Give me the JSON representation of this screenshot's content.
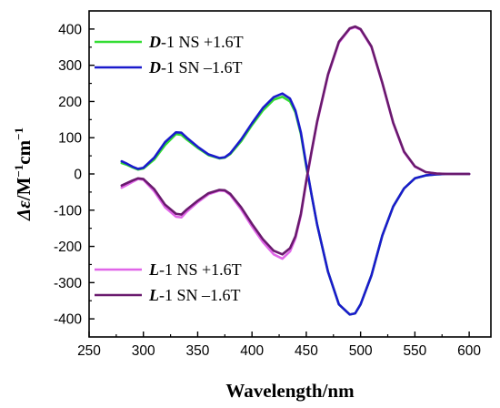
{
  "chart_data": {
    "type": "line",
    "xlabel": "Wavelength/nm",
    "ylabel_parts": {
      "symbol": "Δε",
      "sep": "/M",
      "exp1": "−1",
      "mid": "cm",
      "exp2": "−1"
    },
    "xlim": [
      250,
      620
    ],
    "ylim": [
      -450,
      450
    ],
    "xticks": [
      250,
      300,
      350,
      400,
      450,
      500,
      550,
      600
    ],
    "yticks": [
      -400,
      -300,
      -200,
      -100,
      0,
      100,
      200,
      300,
      400
    ],
    "grid": false,
    "legend_placement": [
      "top-left",
      "bottom-left"
    ],
    "series": [
      {
        "name_prefix": "D",
        "name_suffix": "-1 NS +1.6T",
        "color": "#33dd33",
        "x": [
          280,
          285,
          290,
          295,
          300,
          310,
          320,
          330,
          335,
          340,
          350,
          360,
          370,
          375,
          380,
          390,
          400,
          410,
          420,
          428,
          435,
          440,
          445,
          450,
          455,
          460,
          470,
          480,
          490,
          495,
          500,
          510,
          520,
          530,
          540,
          550,
          560,
          570,
          580,
          590,
          600
        ],
        "y": [
          30,
          25,
          18,
          12,
          15,
          40,
          80,
          110,
          108,
          95,
          72,
          52,
          43,
          45,
          55,
          90,
          135,
          175,
          205,
          213,
          200,
          170,
          110,
          20,
          -60,
          -140,
          -270,
          -360,
          -388,
          -385,
          -360,
          -280,
          -170,
          -90,
          -40,
          -12,
          -4,
          -1,
          0,
          0,
          0
        ]
      },
      {
        "name_prefix": "D",
        "name_suffix": "-1 SN –1.6T",
        "color": "#1a1acc",
        "x": [
          280,
          285,
          290,
          295,
          300,
          310,
          320,
          330,
          335,
          340,
          350,
          360,
          370,
          375,
          380,
          390,
          400,
          410,
          420,
          428,
          435,
          440,
          445,
          450,
          455,
          460,
          470,
          480,
          490,
          495,
          500,
          510,
          520,
          530,
          540,
          550,
          560,
          570,
          580,
          590,
          600
        ],
        "y": [
          35,
          28,
          20,
          14,
          17,
          45,
          88,
          115,
          114,
          100,
          75,
          54,
          44,
          46,
          57,
          95,
          140,
          182,
          212,
          222,
          208,
          175,
          115,
          25,
          -60,
          -140,
          -270,
          -360,
          -388,
          -385,
          -360,
          -280,
          -170,
          -90,
          -40,
          -12,
          -4,
          -1,
          0,
          0,
          0
        ]
      },
      {
        "name_prefix": "L",
        "name_suffix": "-1 NS +1.6T",
        "color": "#e066e8",
        "x": [
          280,
          285,
          290,
          295,
          300,
          310,
          320,
          330,
          335,
          340,
          350,
          360,
          370,
          375,
          380,
          390,
          400,
          410,
          420,
          428,
          435,
          440,
          445,
          450,
          455,
          460,
          470,
          480,
          490,
          495,
          500,
          510,
          520,
          530,
          540,
          550,
          560,
          570,
          580,
          590,
          600
        ],
        "y": [
          -38,
          -30,
          -22,
          -14,
          -16,
          -48,
          -92,
          -118,
          -120,
          -104,
          -78,
          -56,
          -46,
          -47,
          -58,
          -98,
          -145,
          -188,
          -222,
          -234,
          -214,
          -178,
          -115,
          -22,
          62,
          142,
          272,
          362,
          400,
          405,
          398,
          350,
          250,
          140,
          60,
          20,
          5,
          1,
          0,
          0,
          0
        ]
      },
      {
        "name_prefix": "L",
        "name_suffix": "-1 SN –1.6T",
        "color": "#6a1a6e",
        "x": [
          280,
          285,
          290,
          295,
          300,
          310,
          320,
          330,
          335,
          340,
          350,
          360,
          370,
          375,
          380,
          390,
          400,
          410,
          420,
          428,
          435,
          440,
          445,
          450,
          455,
          460,
          470,
          480,
          490,
          495,
          500,
          510,
          520,
          530,
          540,
          550,
          560,
          570,
          580,
          590,
          600
        ],
        "y": [
          -32,
          -25,
          -18,
          -12,
          -14,
          -42,
          -85,
          -110,
          -112,
          -98,
          -74,
          -53,
          -44,
          -45,
          -55,
          -92,
          -138,
          -180,
          -212,
          -222,
          -205,
          -172,
          -110,
          -18,
          65,
          145,
          275,
          365,
          402,
          407,
          400,
          352,
          252,
          142,
          62,
          21,
          5,
          1,
          0,
          0,
          0
        ]
      }
    ]
  }
}
